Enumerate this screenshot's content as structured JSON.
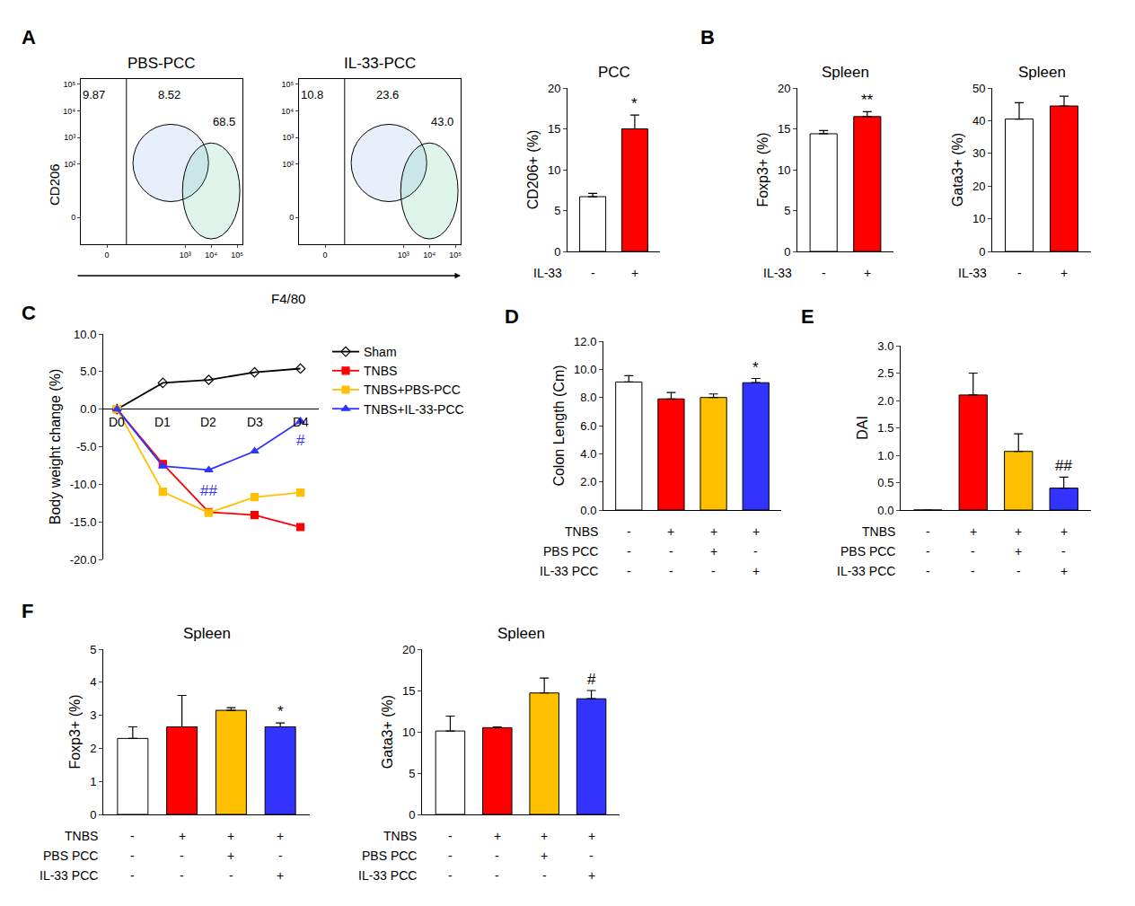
{
  "chart_data": [
    {
      "panel": "A",
      "type": "scatter",
      "title": "PBS-PCC",
      "x_label": "F4/80",
      "y_label": "CD206",
      "xlim": [
        -1,
        5.2
      ],
      "xticks": [
        {
          "value": 0,
          "label": "0"
        },
        {
          "value": 3,
          "label": "10³"
        },
        {
          "value": 4,
          "label": "10⁴"
        },
        {
          "value": 5,
          "label": "10⁵"
        }
      ],
      "ylim": [
        -1,
        5.2
      ],
      "yticks": [
        {
          "value": 0,
          "label": "0"
        },
        {
          "value": 2,
          "label": "10²"
        },
        {
          "value": 3,
          "label": "10³"
        },
        {
          "value": 4,
          "label": "10⁴"
        },
        {
          "value": 5,
          "label": "10⁵"
        }
      ],
      "gate_labels": [
        "9.87",
        "8.52",
        "68.5"
      ]
    },
    {
      "type": "scatter",
      "title": "IL-33-PCC",
      "xlim": [
        -1,
        5.2
      ],
      "xticks": [
        {
          "value": 0,
          "label": "0"
        },
        {
          "value": 3,
          "label": "10³"
        },
        {
          "value": 4,
          "label": "10⁴"
        },
        {
          "value": 5,
          "label": "10⁵"
        }
      ],
      "ylim": [
        -1,
        5.2
      ],
      "yticks": [
        {
          "value": 0,
          "label": "0"
        },
        {
          "value": 2,
          "label": "10²"
        },
        {
          "value": 3,
          "label": "10³"
        },
        {
          "value": 4,
          "label": "10⁴"
        },
        {
          "value": 5,
          "label": "10⁵"
        }
      ],
      "gate_labels": [
        "10.8",
        "23.6",
        "43.0"
      ]
    },
    {
      "type": "bar",
      "title": "PCC",
      "y_label": "CD206+ (%)",
      "factors": [
        {
          "name": "IL-33",
          "levels": [
            "-",
            "+"
          ]
        }
      ],
      "values": [
        6.7,
        15.0
      ],
      "errors": [
        0.4,
        1.7
      ],
      "significance": [
        null,
        "*"
      ],
      "colors": [
        "#ffffff",
        "#ff0000"
      ],
      "ylim": [
        0,
        20
      ],
      "yticks": [
        0,
        5,
        10,
        15,
        20
      ]
    },
    {
      "panel": "B",
      "type": "bar",
      "title": "Spleen",
      "y_label": "Foxp3+ (%)",
      "factors": [
        {
          "name": "IL-33",
          "levels": [
            "-",
            "+"
          ]
        }
      ],
      "values": [
        14.4,
        16.5
      ],
      "errors": [
        0.4,
        0.6
      ],
      "significance": [
        null,
        "**"
      ],
      "colors": [
        "#ffffff",
        "#ff0000"
      ],
      "ylim": [
        0,
        20
      ],
      "yticks": [
        0,
        5,
        10,
        15,
        20
      ]
    },
    {
      "type": "bar",
      "title": "Spleen",
      "y_label": "Gata3+ (%)",
      "factors": [
        {
          "name": "IL-33",
          "levels": [
            "-",
            "+"
          ]
        }
      ],
      "values": [
        40.5,
        44.5
      ],
      "errors": [
        5.0,
        3.0
      ],
      "significance": [
        null,
        null
      ],
      "colors": [
        "#ffffff",
        "#ff0000"
      ],
      "ylim": [
        0,
        50
      ],
      "yticks": [
        0,
        10,
        20,
        30,
        40,
        50
      ]
    },
    {
      "panel": "C",
      "type": "line",
      "y_label": "Body weight change (%)",
      "categories": [
        "D0",
        "D1",
        "D2",
        "D3",
        "D4"
      ],
      "series": [
        {
          "name": "Sham",
          "color": "#000000",
          "marker": "diamond-open",
          "values": [
            0,
            3.5,
            3.9,
            4.9,
            5.4
          ]
        },
        {
          "name": "TNBS",
          "color": "#ff0000",
          "marker": "square",
          "values": [
            0,
            -7.3,
            -13.7,
            -14.1,
            -15.7
          ]
        },
        {
          "name": "TNBS+PBS-PCC",
          "color": "#ffc000",
          "marker": "square",
          "values": [
            0,
            -11.0,
            -13.8,
            -11.7,
            -11.1
          ]
        },
        {
          "name": "TNBS+IL-33-PCC",
          "color": "#3333ff",
          "marker": "triangle-up",
          "values": [
            0,
            -7.6,
            -8.1,
            -5.6,
            -1.6
          ]
        }
      ],
      "annotations": [
        {
          "text": "##",
          "x": "D2",
          "y": -10.8,
          "color": "#3333ff"
        },
        {
          "text": "#",
          "x": "D4",
          "y": -4.2,
          "color": "#3333ff"
        }
      ],
      "ylim": [
        -20,
        10
      ],
      "yticks": [
        {
          "value": -20,
          "label": "-20.0"
        },
        {
          "value": -15,
          "label": "-15.0"
        },
        {
          "value": -10,
          "label": "-10.0"
        },
        {
          "value": -5,
          "label": "-5.0"
        },
        {
          "value": 0,
          "label": "0.0"
        },
        {
          "value": 5,
          "label": "5.0"
        },
        {
          "value": 10,
          "label": "10.0"
        }
      ],
      "legend": "right"
    },
    {
      "panel": "D",
      "type": "bar",
      "y_label": "Colon Length (Cm)",
      "factors": [
        {
          "name": "TNBS",
          "levels": [
            "-",
            "+",
            "+",
            "+"
          ]
        },
        {
          "name": "PBS PCC",
          "levels": [
            "-",
            "-",
            "+",
            "-"
          ]
        },
        {
          "name": "IL-33 PCC",
          "levels": [
            "-",
            "-",
            "-",
            "+"
          ]
        }
      ],
      "values": [
        9.1,
        7.9,
        8.0,
        9.05
      ],
      "errors": [
        0.45,
        0.45,
        0.25,
        0.3
      ],
      "significance": [
        null,
        null,
        null,
        "*"
      ],
      "colors": [
        "#ffffff",
        "#ff0000",
        "#ffc000",
        "#3333ff"
      ],
      "ylim": [
        0,
        12
      ],
      "yticks": [
        {
          "value": 0,
          "label": "0.0"
        },
        {
          "value": 2,
          "label": "2.0"
        },
        {
          "value": 4,
          "label": "4.0"
        },
        {
          "value": 6,
          "label": "6.0"
        },
        {
          "value": 8,
          "label": "8.0"
        },
        {
          "value": 10,
          "label": "10.0"
        },
        {
          "value": 12,
          "label": "12.0"
        }
      ]
    },
    {
      "panel": "E",
      "type": "bar",
      "y_label": "DAI",
      "factors": [
        {
          "name": "TNBS",
          "levels": [
            "-",
            "+",
            "+",
            "+"
          ]
        },
        {
          "name": "PBS PCC",
          "levels": [
            "-",
            "-",
            "+",
            "-"
          ]
        },
        {
          "name": "IL-33 PCC",
          "levels": [
            "-",
            "-",
            "-",
            "+"
          ]
        }
      ],
      "values": [
        0,
        2.1,
        1.07,
        0.4
      ],
      "errors": [
        0,
        0.4,
        0.32,
        0.2
      ],
      "significance": [
        null,
        null,
        null,
        "##"
      ],
      "colors": [
        "#ffffff",
        "#ff0000",
        "#ffc000",
        "#3333ff"
      ],
      "ylim": [
        0,
        3
      ],
      "yticks": [
        {
          "value": 0,
          "label": "0.0"
        },
        {
          "value": 0.5,
          "label": "0.5"
        },
        {
          "value": 1,
          "label": "1.0"
        },
        {
          "value": 1.5,
          "label": "1.5"
        },
        {
          "value": 2,
          "label": "2.0"
        },
        {
          "value": 2.5,
          "label": "2.5"
        },
        {
          "value": 3,
          "label": "3.0"
        }
      ]
    },
    {
      "panel": "F",
      "type": "bar",
      "title": "Spleen",
      "y_label": "Foxp3+ (%)",
      "factors": [
        {
          "name": "TNBS",
          "levels": [
            "-",
            "+",
            "+",
            "+"
          ]
        },
        {
          "name": "PBS PCC",
          "levels": [
            "-",
            "-",
            "+",
            "-"
          ]
        },
        {
          "name": "IL-33 PCC",
          "levels": [
            "-",
            "-",
            "-",
            "+"
          ]
        }
      ],
      "values": [
        2.3,
        2.65,
        3.15,
        2.65
      ],
      "errors": [
        0.35,
        0.95,
        0.08,
        0.12
      ],
      "significance": [
        null,
        null,
        null,
        "*"
      ],
      "colors": [
        "#ffffff",
        "#ff0000",
        "#ffc000",
        "#3333ff"
      ],
      "ylim": [
        0,
        5
      ],
      "yticks": [
        0,
        1,
        2,
        3,
        4,
        5
      ]
    },
    {
      "type": "bar",
      "title": "Spleen",
      "y_label": "Gata3+ (%)",
      "factors": [
        {
          "name": "TNBS",
          "levels": [
            "-",
            "+",
            "+",
            "+"
          ]
        },
        {
          "name": "PBS PCC",
          "levels": [
            "-",
            "-",
            "+",
            "-"
          ]
        },
        {
          "name": "IL-33 PCC",
          "levels": [
            "-",
            "-",
            "-",
            "+"
          ]
        }
      ],
      "values": [
        10.1,
        10.5,
        14.7,
        14.0
      ],
      "errors": [
        1.8,
        0.1,
        1.8,
        1.0
      ],
      "significance": [
        null,
        null,
        null,
        "#"
      ],
      "colors": [
        "#ffffff",
        "#ff0000",
        "#ffc000",
        "#3333ff"
      ],
      "ylim": [
        0,
        20
      ],
      "yticks": [
        0,
        5,
        10,
        15,
        20
      ]
    }
  ]
}
